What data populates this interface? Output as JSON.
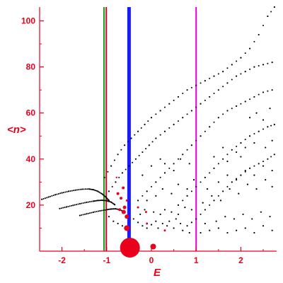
{
  "chart_data": {
    "type": "scatter",
    "title": "",
    "xlabel": "E",
    "ylabel": "<n>",
    "xlim": [
      -2.5,
      2.8
    ],
    "ylim": [
      0,
      106
    ],
    "xticks": [
      -2,
      -1,
      0,
      1,
      2
    ],
    "yticks": [
      20,
      40,
      60,
      80,
      100
    ],
    "grid": false,
    "legend": "none",
    "colors": {
      "axis": "#e8001c",
      "points": "#000000",
      "highlight_points": "#e8001c",
      "line_blue": "#1a1aff",
      "line_green": "#1f9a1f",
      "line_red": "#e8001c",
      "line_magenta": "#e000e0"
    },
    "vertical_lines": [
      {
        "x": -1.06,
        "color": "#1f9a1f"
      },
      {
        "x": -1.01,
        "color": "#e8001c"
      },
      {
        "x": -0.5,
        "color": "#1a1aff"
      },
      {
        "x": 1.0,
        "color": "#e000e0"
      }
    ],
    "highlight_points": [
      {
        "x": -0.48,
        "y": 1.5,
        "r": 14
      },
      {
        "x": 0.04,
        "y": 2,
        "r": 4
      },
      {
        "x": -0.55,
        "y": 10,
        "r": 4
      },
      {
        "x": -0.55,
        "y": 15,
        "r": 3
      },
      {
        "x": -0.62,
        "y": 17,
        "r": 3
      },
      {
        "x": -0.6,
        "y": 19,
        "r": 2.5
      },
      {
        "x": -0.71,
        "y": 18,
        "r": 2
      },
      {
        "x": -0.68,
        "y": 23,
        "r": 2
      },
      {
        "x": -0.75,
        "y": 25,
        "r": 2
      },
      {
        "x": -0.63,
        "y": 27.5,
        "r": 2
      },
      {
        "x": -0.55,
        "y": 22,
        "r": 1.5
      },
      {
        "x": -0.3,
        "y": 19,
        "r": 1.5
      },
      {
        "x": -0.12,
        "y": 17,
        "r": 1.5
      },
      {
        "x": -0.1,
        "y": 12,
        "r": 1.5
      },
      {
        "x": 0.3,
        "y": 9,
        "r": 1.5
      },
      {
        "x": -0.78,
        "y": 32,
        "r": 1.2
      }
    ],
    "series": [
      {
        "kind": "arc",
        "points": [
          [
            -2.45,
            22.5
          ],
          [
            -2.3,
            23.5
          ],
          [
            -2.15,
            24.5
          ],
          [
            -2.0,
            25.3
          ],
          [
            -1.85,
            26.0
          ],
          [
            -1.7,
            26.5
          ],
          [
            -1.55,
            26.9
          ],
          [
            -1.4,
            27.0
          ],
          [
            -1.3,
            26.7
          ],
          [
            -1.2,
            26.0
          ],
          [
            -1.1,
            24.8
          ],
          [
            -1.02,
            23.5
          ],
          [
            -0.95,
            22.0
          ]
        ]
      },
      {
        "kind": "arc",
        "points": [
          [
            -2.05,
            18.5
          ],
          [
            -1.9,
            19.2
          ],
          [
            -1.75,
            19.9
          ],
          [
            -1.6,
            20.6
          ],
          [
            -1.45,
            21.2
          ],
          [
            -1.3,
            21.7
          ],
          [
            -1.2,
            22.0
          ],
          [
            -1.1,
            22.1
          ],
          [
            -1.0,
            21.9
          ],
          [
            -0.9,
            21.3
          ],
          [
            -0.82,
            20.2
          ]
        ]
      },
      {
        "kind": "arc",
        "points": [
          [
            -1.6,
            15.5
          ],
          [
            -1.45,
            16.2
          ],
          [
            -1.3,
            16.9
          ],
          [
            -1.15,
            17.5
          ],
          [
            -1.0,
            18.0
          ],
          [
            -0.9,
            18.3
          ],
          [
            -0.8,
            18.4
          ],
          [
            -0.7,
            18.0
          ],
          [
            -0.62,
            17.0
          ]
        ]
      },
      {
        "kind": "ridge",
        "points": [
          [
            -1.05,
            32
          ],
          [
            -0.9,
            37
          ],
          [
            -0.75,
            42
          ],
          [
            -0.6,
            46
          ],
          [
            -0.45,
            49
          ],
          [
            -0.3,
            52
          ],
          [
            -0.15,
            55
          ],
          [
            0.0,
            58
          ],
          [
            0.2,
            61
          ],
          [
            0.4,
            64
          ],
          [
            0.6,
            67
          ],
          [
            0.8,
            70
          ],
          [
            1.0,
            72
          ],
          [
            1.2,
            74
          ],
          [
            1.4,
            76
          ],
          [
            1.6,
            78
          ],
          [
            1.8,
            81
          ],
          [
            2.0,
            84
          ],
          [
            2.2,
            88
          ],
          [
            2.4,
            94
          ],
          [
            2.6,
            102
          ],
          [
            2.75,
            106
          ]
        ]
      },
      {
        "kind": "ridge",
        "points": [
          [
            -0.95,
            26
          ],
          [
            -0.8,
            30
          ],
          [
            -0.65,
            34
          ],
          [
            -0.5,
            37
          ],
          [
            -0.35,
            40
          ],
          [
            -0.2,
            43
          ],
          [
            -0.05,
            46
          ],
          [
            0.1,
            49
          ],
          [
            0.3,
            52
          ],
          [
            0.5,
            55
          ],
          [
            0.7,
            58
          ],
          [
            0.9,
            61
          ],
          [
            1.1,
            64
          ],
          [
            1.3,
            67
          ],
          [
            1.5,
            70
          ],
          [
            1.7,
            73
          ],
          [
            1.9,
            76
          ],
          [
            2.1,
            78
          ],
          [
            2.3,
            80
          ],
          [
            2.5,
            81
          ],
          [
            2.7,
            82
          ]
        ]
      },
      {
        "kind": "ridge",
        "points": [
          [
            -0.3,
            22
          ],
          [
            -0.1,
            26
          ],
          [
            0.1,
            30
          ],
          [
            0.3,
            34
          ],
          [
            0.5,
            38
          ],
          [
            0.7,
            42
          ],
          [
            0.9,
            46
          ],
          [
            1.1,
            50
          ],
          [
            1.3,
            54
          ],
          [
            1.5,
            58
          ],
          [
            1.7,
            61
          ],
          [
            1.9,
            63
          ],
          [
            2.1,
            65
          ],
          [
            2.3,
            67
          ],
          [
            2.5,
            69
          ],
          [
            2.7,
            70
          ]
        ]
      },
      {
        "kind": "ridge",
        "points": [
          [
            0.6,
            20
          ],
          [
            0.8,
            24
          ],
          [
            1.0,
            28
          ],
          [
            1.2,
            32
          ],
          [
            1.4,
            36
          ],
          [
            1.6,
            40
          ],
          [
            1.8,
            44
          ],
          [
            2.0,
            47
          ],
          [
            2.2,
            50
          ],
          [
            2.4,
            52
          ],
          [
            2.6,
            54
          ],
          [
            2.75,
            55
          ]
        ]
      },
      {
        "kind": "ridge",
        "points": [
          [
            1.0,
            14
          ],
          [
            1.2,
            18
          ],
          [
            1.4,
            22
          ],
          [
            1.6,
            26
          ],
          [
            1.8,
            30
          ],
          [
            2.0,
            33
          ],
          [
            2.2,
            36
          ],
          [
            2.4,
            38
          ],
          [
            2.6,
            40
          ],
          [
            2.75,
            42
          ]
        ]
      },
      {
        "kind": "cluster",
        "points": [
          [
            -0.95,
            15
          ],
          [
            -0.85,
            13
          ],
          [
            -0.75,
            12
          ],
          [
            -0.65,
            11
          ],
          [
            -0.4,
            14
          ],
          [
            -0.3,
            12.5
          ],
          [
            -0.2,
            11
          ],
          [
            -0.1,
            10
          ],
          [
            0.0,
            11.5
          ],
          [
            0.1,
            13
          ],
          [
            0.15,
            10
          ],
          [
            0.25,
            12
          ],
          [
            0.35,
            11
          ],
          [
            0.4,
            13
          ],
          [
            0.5,
            10
          ],
          [
            0.55,
            14
          ],
          [
            0.65,
            12
          ],
          [
            0.7,
            9
          ],
          [
            0.8,
            11
          ],
          [
            0.85,
            8
          ],
          [
            0.9,
            12.5
          ],
          [
            -0.25,
            16
          ],
          [
            -0.15,
            18
          ],
          [
            0.05,
            17
          ],
          [
            0.2,
            16
          ],
          [
            0.3,
            18
          ],
          [
            0.45,
            17
          ],
          [
            0.6,
            16
          ],
          [
            0.75,
            19
          ],
          [
            0.9,
            18
          ],
          [
            1.1,
            8
          ],
          [
            1.3,
            9
          ],
          [
            1.5,
            10
          ],
          [
            1.7,
            8
          ],
          [
            1.9,
            9
          ],
          [
            2.1,
            10
          ],
          [
            2.3,
            8
          ],
          [
            2.5,
            11
          ],
          [
            2.7,
            9
          ],
          [
            1.2,
            12
          ],
          [
            1.45,
            13
          ],
          [
            1.65,
            15
          ],
          [
            1.85,
            14
          ],
          [
            2.05,
            16
          ],
          [
            2.25,
            14
          ],
          [
            2.45,
            17
          ],
          [
            2.65,
            15
          ],
          [
            1.15,
            21
          ],
          [
            1.35,
            24
          ],
          [
            1.55,
            22
          ],
          [
            1.75,
            27
          ],
          [
            1.95,
            25
          ],
          [
            2.15,
            29
          ],
          [
            2.35,
            27
          ],
          [
            2.55,
            31
          ],
          [
            2.7,
            28
          ],
          [
            1.25,
            27
          ],
          [
            1.5,
            30
          ],
          [
            1.7,
            33
          ],
          [
            1.9,
            31
          ],
          [
            2.1,
            35
          ],
          [
            2.3,
            33
          ],
          [
            2.5,
            37
          ],
          [
            2.7,
            35
          ],
          [
            -0.1,
            22
          ],
          [
            0.1,
            24
          ],
          [
            0.25,
            27
          ],
          [
            0.45,
            25
          ],
          [
            0.6,
            29
          ],
          [
            0.8,
            27
          ],
          [
            0.95,
            31
          ],
          [
            0.3,
            38
          ],
          [
            0.5,
            35
          ],
          [
            0.65,
            40
          ],
          [
            0.85,
            38
          ],
          [
            0.2,
            40
          ],
          [
            0.0,
            37
          ],
          [
            -0.2,
            33
          ],
          [
            1.6,
            45
          ],
          [
            1.9,
            43
          ],
          [
            2.1,
            45
          ],
          [
            2.3,
            47
          ],
          [
            2.55,
            45
          ],
          [
            2.7,
            48
          ],
          [
            1.4,
            41
          ],
          [
            1.7,
            39
          ],
          [
            2.0,
            41
          ],
          [
            2.5,
            57
          ],
          [
            2.35,
            60
          ],
          [
            2.65,
            62
          ],
          [
            2.2,
            58
          ]
        ]
      }
    ]
  }
}
